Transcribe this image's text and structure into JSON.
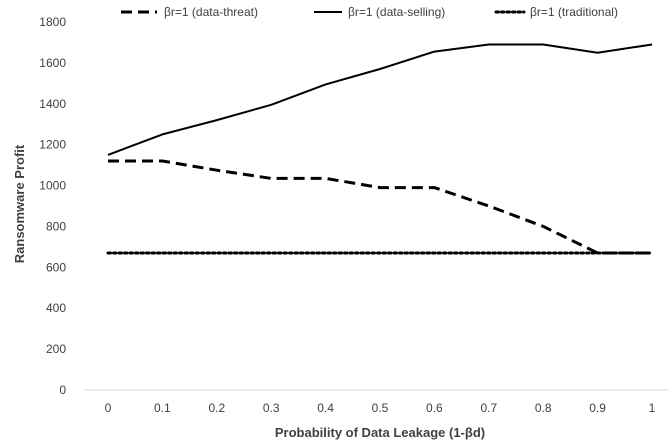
{
  "chart_data": {
    "type": "line",
    "x": [
      0,
      0.1,
      0.2,
      0.3,
      0.4,
      0.5,
      0.6,
      0.7,
      0.8,
      0.9,
      1
    ],
    "x_tick_labels": [
      "0",
      "0.1",
      "0.2",
      "0.3",
      "0.4",
      "0.5",
      "0.6",
      "0.7",
      "0.8",
      "0.9",
      "1"
    ],
    "y_ticks": [
      0,
      200,
      400,
      600,
      800,
      1000,
      1200,
      1400,
      1600,
      1800
    ],
    "ylim": [
      0,
      1800
    ],
    "xlabel": "Probability of Data Leakage (1-βd)",
    "ylabel": "Ransomware Profit",
    "grid": false,
    "legend_position": "top",
    "series": [
      {
        "name": "βr=1 (data-threat)",
        "style": "dashed",
        "color": "#000000",
        "values": [
          1120,
          1120,
          1075,
          1035,
          1035,
          990,
          990,
          900,
          800,
          670,
          670
        ]
      },
      {
        "name": "βr=1 (data-selling)",
        "style": "solid",
        "color": "#000000",
        "values": [
          1150,
          1250,
          1320,
          1395,
          1495,
          1570,
          1655,
          1690,
          1690,
          1650,
          1690
        ]
      },
      {
        "name": "βr=1 (traditional)",
        "style": "dotted",
        "color": "#000000",
        "values": [
          670,
          670,
          670,
          670,
          670,
          670,
          670,
          670,
          670,
          670,
          670
        ]
      }
    ]
  }
}
